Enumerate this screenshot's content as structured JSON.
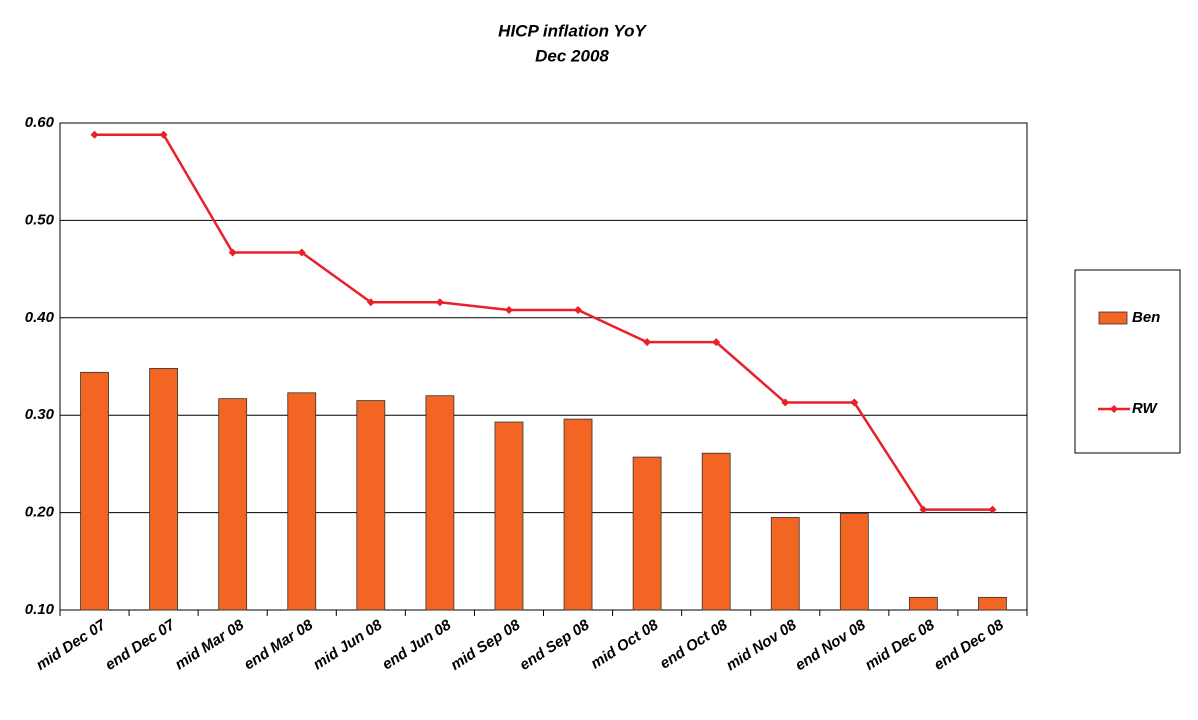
{
  "chart_data": {
    "type": "bar",
    "title": "HICP inflation YoY",
    "subtitle": "Dec 2008",
    "categories": [
      "mid Dec 07",
      "end Dec 07",
      "mid Mar 08",
      "end Mar 08",
      "mid Jun 08",
      "end Jun 08",
      "mid Sep 08",
      "end Sep 08",
      "mid Oct 08",
      "end Oct 08",
      "mid Nov 08",
      "end Nov 08",
      "mid Dec 08",
      "end Dec 08"
    ],
    "series": [
      {
        "name": "Ben",
        "type": "bar",
        "color": "#f26522",
        "values": [
          0.344,
          0.348,
          0.317,
          0.323,
          0.315,
          0.32,
          0.293,
          0.296,
          0.257,
          0.261,
          0.195,
          0.199,
          0.113,
          0.113
        ]
      },
      {
        "name": "RW",
        "type": "line",
        "color": "#e8202a",
        "values": [
          0.588,
          0.588,
          0.467,
          0.467,
          0.416,
          0.416,
          0.408,
          0.408,
          0.375,
          0.375,
          0.313,
          0.313,
          0.203,
          0.203
        ]
      }
    ],
    "ylim": [
      0.1,
      0.6
    ],
    "yticks": [
      {
        "value": 0.1,
        "label": "0.10"
      },
      {
        "value": 0.2,
        "label": "0.20"
      },
      {
        "value": 0.3,
        "label": "0.30"
      },
      {
        "value": 0.4,
        "label": "0.40"
      },
      {
        "value": 0.5,
        "label": "0.50"
      },
      {
        "value": 0.6,
        "label": "0.60"
      }
    ],
    "grid": true,
    "legend": "right"
  }
}
